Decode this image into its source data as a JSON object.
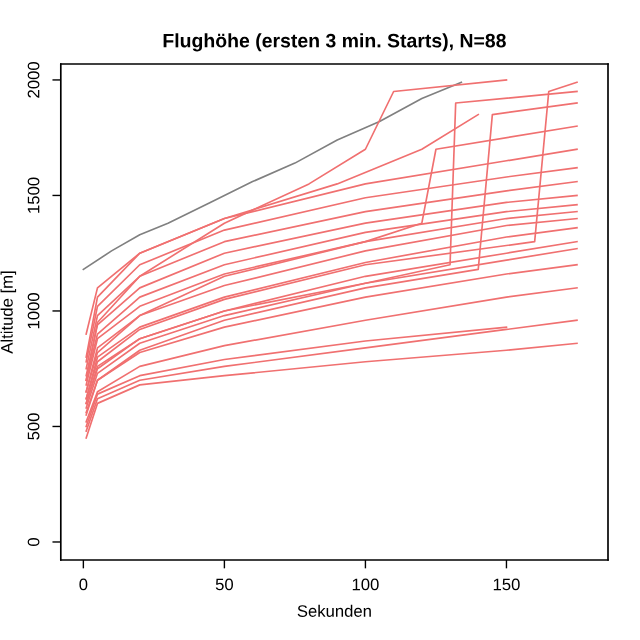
{
  "chart_data": {
    "type": "line",
    "title": "Flughöhe (ersten 3 min. Starts), N=88",
    "xlabel": "Sekunden",
    "ylabel": "Altitude [m]",
    "xlim": [
      -8,
      186
    ],
    "ylim": [
      -78,
      2069
    ],
    "xticks": [
      0,
      50,
      100,
      150
    ],
    "yticks": [
      0,
      500,
      1000,
      1500,
      2000
    ],
    "grid": false,
    "legend": false,
    "line_style": "solid",
    "marker": "none",
    "series": [
      {
        "color": "#808080",
        "x": [
          0,
          10,
          20,
          30,
          45,
          60,
          75,
          90,
          105,
          120,
          134
        ],
        "values": [
          1180,
          1260,
          1330,
          1380,
          1470,
          1560,
          1640,
          1740,
          1820,
          1920,
          1990
        ]
      },
      {
        "color": "#f07070",
        "x": [
          1,
          5,
          20,
          50,
          100,
          150,
          175
        ],
        "values": [
          450,
          600,
          680,
          720,
          780,
          830,
          860
        ]
      },
      {
        "color": "#f07070",
        "x": [
          1,
          5,
          20,
          50,
          100,
          150,
          175
        ],
        "values": [
          480,
          620,
          700,
          760,
          840,
          920,
          960
        ]
      },
      {
        "color": "#f07070",
        "x": [
          1,
          5,
          20,
          50,
          100,
          150,
          175
        ],
        "values": [
          520,
          650,
          760,
          850,
          960,
          1060,
          1100
        ]
      },
      {
        "color": "#f07070",
        "x": [
          1,
          5,
          20,
          50,
          100,
          150,
          175
        ],
        "values": [
          550,
          700,
          820,
          930,
          1060,
          1160,
          1200
        ]
      },
      {
        "color": "#f07070",
        "x": [
          1,
          5,
          20,
          50,
          100,
          150,
          175
        ],
        "values": [
          600,
          760,
          880,
          1000,
          1150,
          1250,
          1300
        ]
      },
      {
        "color": "#f07070",
        "x": [
          1,
          5,
          20,
          50,
          100,
          150,
          175
        ],
        "values": [
          620,
          800,
          930,
          1060,
          1210,
          1320,
          1360
        ]
      },
      {
        "color": "#f07070",
        "x": [
          1,
          5,
          20,
          50,
          100,
          150,
          175
        ],
        "values": [
          650,
          840,
          980,
          1110,
          1260,
          1370,
          1400
        ]
      },
      {
        "color": "#f07070",
        "x": [
          1,
          5,
          20,
          50,
          100,
          150,
          175
        ],
        "values": [
          680,
          880,
          1020,
          1160,
          1300,
          1400,
          1430
        ]
      },
      {
        "color": "#f07070",
        "x": [
          1,
          5,
          20,
          50,
          100,
          150,
          175
        ],
        "values": [
          700,
          900,
          1060,
          1200,
          1340,
          1430,
          1460
        ]
      },
      {
        "color": "#f07070",
        "x": [
          1,
          5,
          20,
          50,
          100,
          150,
          175
        ],
        "values": [
          720,
          940,
          1100,
          1250,
          1380,
          1470,
          1500
        ]
      },
      {
        "color": "#f07070",
        "x": [
          1,
          5,
          20,
          50,
          100,
          150,
          175
        ],
        "values": [
          750,
          980,
          1150,
          1300,
          1430,
          1520,
          1560
        ]
      },
      {
        "color": "#f07070",
        "x": [
          1,
          5,
          20,
          50,
          100,
          150,
          175
        ],
        "values": [
          780,
          1020,
          1200,
          1350,
          1490,
          1580,
          1620
        ]
      },
      {
        "color": "#f07070",
        "x": [
          1,
          5,
          20,
          50,
          100,
          150,
          175
        ],
        "values": [
          800,
          1060,
          1250,
          1400,
          1550,
          1650,
          1700
        ]
      },
      {
        "color": "#f07070",
        "x": [
          1,
          5,
          20,
          50,
          100,
          130,
          132,
          175
        ],
        "values": [
          600,
          750,
          880,
          1000,
          1120,
          1200,
          1900,
          1950
        ]
      },
      {
        "color": "#f07070",
        "x": [
          1,
          5,
          20,
          50,
          100,
          140,
          145,
          175
        ],
        "values": [
          560,
          700,
          830,
          960,
          1100,
          1180,
          1850,
          1900
        ]
      },
      {
        "color": "#f07070",
        "x": [
          1,
          5,
          20,
          50,
          80,
          100,
          110,
          150
        ],
        "values": [
          700,
          950,
          1150,
          1380,
          1550,
          1700,
          1950,
          2000
        ]
      },
      {
        "color": "#f07070",
        "x": [
          1,
          5,
          20,
          50,
          100,
          120,
          125,
          175
        ],
        "values": [
          650,
          820,
          980,
          1150,
          1300,
          1380,
          1700,
          1800
        ]
      },
      {
        "color": "#f07070",
        "x": [
          1,
          5,
          20,
          50,
          100,
          150
        ],
        "values": [
          500,
          640,
          720,
          790,
          870,
          930
        ]
      },
      {
        "color": "#f07070",
        "x": [
          1,
          5,
          20,
          50,
          100,
          160,
          165,
          175
        ],
        "values": [
          620,
          780,
          920,
          1050,
          1200,
          1300,
          1950,
          1990
        ]
      },
      {
        "color": "#f07070",
        "x": [
          1,
          5,
          20,
          50,
          90,
          120,
          140
        ],
        "values": [
          900,
          1100,
          1250,
          1400,
          1550,
          1700,
          1850
        ]
      },
      {
        "color": "#f07070",
        "x": [
          1,
          5,
          20,
          50,
          100,
          150,
          175
        ],
        "values": [
          580,
          730,
          860,
          980,
          1120,
          1220,
          1270
        ]
      }
    ]
  }
}
